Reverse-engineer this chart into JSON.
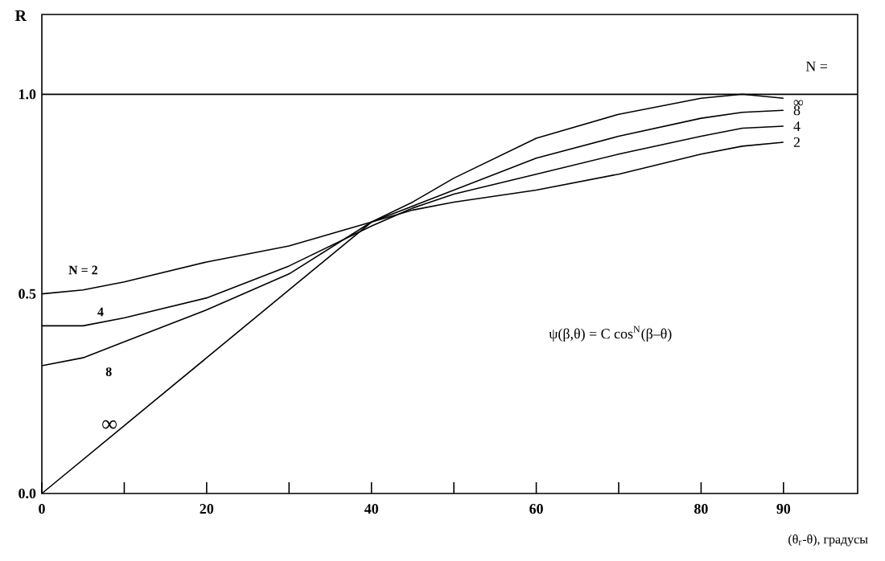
{
  "chart_data": {
    "type": "line",
    "ylabel": "R",
    "xlabel": "(θ$_{r}$-θ), градусы",
    "x": [
      0,
      5,
      10,
      20,
      30,
      40,
      45,
      50,
      60,
      70,
      80,
      85,
      90
    ],
    "series": [
      {
        "name": "N = 2",
        "color": "#000000",
        "values": [
          0.5,
          0.51,
          0.53,
          0.58,
          0.62,
          0.68,
          0.71,
          0.73,
          0.76,
          0.8,
          0.85,
          0.87,
          0.88
        ]
      },
      {
        "name": "4",
        "color": "#000000",
        "values": [
          0.42,
          0.42,
          0.44,
          0.49,
          0.57,
          0.67,
          0.715,
          0.75,
          0.8,
          0.85,
          0.895,
          0.915,
          0.92
        ]
      },
      {
        "name": "8",
        "color": "#000000",
        "values": [
          0.32,
          0.34,
          0.38,
          0.46,
          0.55,
          0.68,
          0.72,
          0.76,
          0.84,
          0.895,
          0.94,
          0.955,
          0.96
        ]
      },
      {
        "name": "∞",
        "color": "#000000",
        "values": [
          0,
          0.085,
          0.17,
          0.34,
          0.51,
          0.68,
          0.73,
          0.79,
          0.89,
          0.95,
          0.99,
          1.0,
          0.99
        ]
      }
    ],
    "xlim": [
      0,
      99
    ],
    "ylim": [
      0,
      1.2
    ],
    "xticks": [
      0,
      {
        "value": 10,
        "label": null
      },
      20,
      {
        "value": 30,
        "label": null
      },
      40,
      {
        "value": 50,
        "label": null
      },
      60,
      {
        "value": 70,
        "label": null
      },
      80,
      90
    ],
    "yticks": [
      {
        "value": 0,
        "label": "0.0"
      },
      {
        "value": 0.5,
        "label": "0.5"
      },
      {
        "value": 1,
        "label": "1.0"
      }
    ],
    "ref_lines": [
      {
        "axis": "y",
        "value": 1,
        "color": "#000000"
      }
    ],
    "marker": "none",
    "line_style": "solid",
    "annotations": [
      "ψ(β,θ) = C cos$^{N}$(β–θ)",
      "N =",
      "∞",
      "8",
      "4",
      "2"
    ]
  }
}
